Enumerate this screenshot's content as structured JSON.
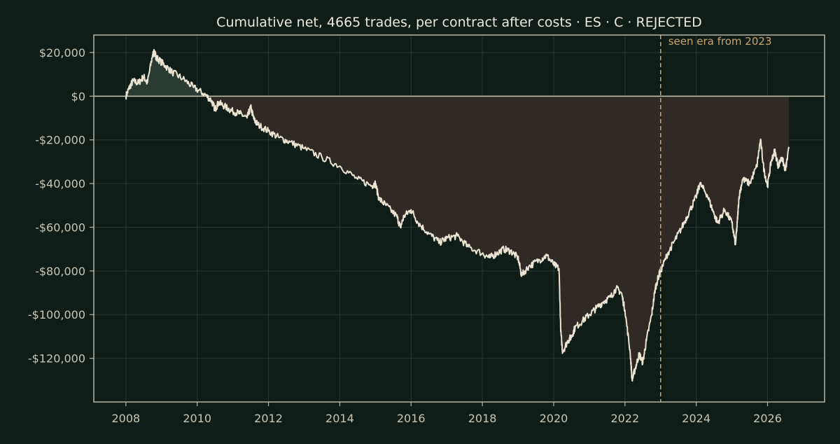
{
  "chart_data": {
    "type": "line",
    "title": "Cumulative net, 4665 trades, per contract after costs  ·  ES · C · REJECTED",
    "xlabel": "",
    "ylabel": "",
    "xlim": [
      2007.1,
      2027.6
    ],
    "ylim": [
      -140000,
      28000
    ],
    "x_ticks": [
      2008,
      2010,
      2012,
      2014,
      2016,
      2018,
      2020,
      2022,
      2024,
      2026
    ],
    "x_tick_labels": [
      "2008",
      "2010",
      "2012",
      "2014",
      "2016",
      "2018",
      "2020",
      "2022",
      "2024",
      "2026"
    ],
    "y_ticks": [
      20000,
      0,
      -20000,
      -40000,
      -60000,
      -80000,
      -100000,
      -120000
    ],
    "y_tick_labels": [
      "$20,000",
      "$0",
      "-$20,000",
      "-$40,000",
      "-$60,000",
      "-$80,000",
      "-$100,000",
      "-$120,000"
    ],
    "grid": true,
    "series": [
      {
        "x": [
          2008.0,
          2008.1,
          2008.2,
          2008.35,
          2008.5,
          2008.6,
          2008.75,
          2008.8,
          2008.85,
          2008.9,
          2009.1,
          2009.3,
          2009.6,
          2009.9,
          2010.2,
          2010.4,
          2010.5,
          2010.6,
          2010.8,
          2011.0,
          2011.2,
          2011.4,
          2011.5,
          2011.6,
          2011.7,
          2012.0,
          2012.3,
          2012.6,
          2013.0,
          2013.5,
          2014.0,
          2014.5,
          2014.9,
          2015.0,
          2015.1,
          2015.3,
          2015.6,
          2015.7,
          2015.8,
          2016.0,
          2016.2,
          2016.5,
          2016.8,
          2017.0,
          2017.3,
          2017.6,
          2018.0,
          2018.2,
          2018.4,
          2018.6,
          2018.8,
          2019.0,
          2019.1,
          2019.3,
          2019.6,
          2019.8,
          2020.0,
          2020.15,
          2020.2,
          2020.25,
          2020.4,
          2020.5,
          2020.6,
          2020.8,
          2021.0,
          2021.2,
          2021.4,
          2021.6,
          2021.75,
          2021.9,
          2022.0,
          2022.15,
          2022.2,
          2022.3,
          2022.4,
          2022.5,
          2022.6,
          2022.75,
          2022.85,
          2022.95,
          2023.0,
          2023.2,
          2023.4,
          2023.6,
          2023.8,
          2024.0,
          2024.1,
          2024.3,
          2024.5,
          2024.6,
          2024.8,
          2025.0,
          2025.1,
          2025.15,
          2025.2,
          2025.3,
          2025.5,
          2025.7,
          2025.8,
          2025.9,
          2026.0,
          2026.1,
          2026.2,
          2026.3,
          2026.4,
          2026.5,
          2026.6
        ],
        "y": [
          0,
          4000,
          7000,
          6000,
          9000,
          6000,
          19000,
          20000,
          18000,
          17000,
          14000,
          11000,
          8000,
          4000,
          1000,
          -2000,
          -6000,
          -3000,
          -5000,
          -7000,
          -8000,
          -10000,
          -5000,
          -11000,
          -13000,
          -16000,
          -19000,
          -21000,
          -24000,
          -28000,
          -32000,
          -38000,
          -41000,
          -40000,
          -47000,
          -50000,
          -55000,
          -60000,
          -55000,
          -52000,
          -58000,
          -63000,
          -67000,
          -65000,
          -64000,
          -69000,
          -72000,
          -74000,
          -72000,
          -70000,
          -71000,
          -74000,
          -82000,
          -78000,
          -75000,
          -73000,
          -77000,
          -79000,
          -108000,
          -117000,
          -112000,
          -110000,
          -106000,
          -103000,
          -100000,
          -97000,
          -94000,
          -92000,
          -88000,
          -90000,
          -98000,
          -118000,
          -130000,
          -124000,
          -118000,
          -122000,
          -112000,
          -100000,
          -88000,
          -82000,
          -80000,
          -72000,
          -66000,
          -60000,
          -53000,
          -46000,
          -40000,
          -45000,
          -54000,
          -58000,
          -52000,
          -58000,
          -68000,
          -58000,
          -46000,
          -38000,
          -40000,
          -32000,
          -20000,
          -34000,
          -41000,
          -30000,
          -25000,
          -32000,
          -28000,
          -34000,
          -24000
        ]
      }
    ],
    "annotations": [
      {
        "type": "vline",
        "x": 2023.0,
        "label": "seen era from 2023"
      }
    ],
    "colors": {
      "background": "#0f1c18",
      "line": "#ece4d2",
      "positive_fill": "#2b3b34",
      "negative_fill": "#302a27",
      "axis": "#b9b5a3",
      "grid": "#2a3632",
      "text": "#c9c5b3",
      "title": "#ece8db",
      "annotation": "#c9a56b"
    }
  }
}
